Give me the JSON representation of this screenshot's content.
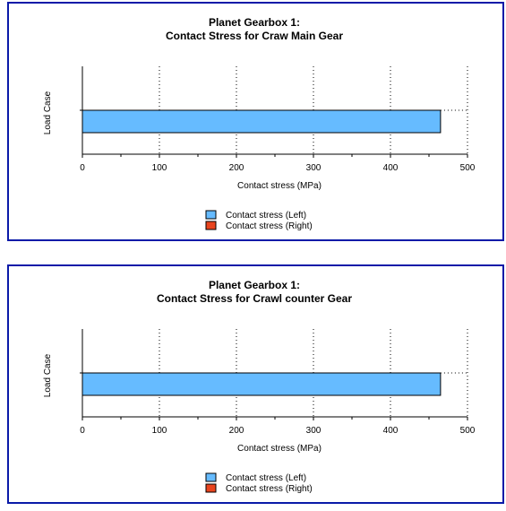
{
  "chart_data": [
    {
      "type": "bar",
      "orientation": "horizontal",
      "title": "Planet Gearbox 1:",
      "subtitle": "Contact Stress for Craw Main Gear",
      "xlabel": "Contact stress (MPa)",
      "ylabel": "Load Case",
      "xlim": [
        0,
        500
      ],
      "xticks": [
        0,
        100,
        200,
        300,
        400,
        500
      ],
      "grid": "vertical dotted",
      "legend_position": "bottom",
      "series": [
        {
          "name": "Contact stress (Left)",
          "color": "#66bbff",
          "values": [
            465
          ]
        },
        {
          "name": "Contact stress (Right)",
          "color": "#e8441e",
          "values": [
            0
          ]
        }
      ]
    },
    {
      "type": "bar",
      "orientation": "horizontal",
      "title": "Planet Gearbox 1:",
      "subtitle": "Contact Stress for Crawl  counter Gear",
      "xlabel": "Contact stress (MPa)",
      "ylabel": "Load Case",
      "xlim": [
        0,
        500
      ],
      "xticks": [
        0,
        100,
        200,
        300,
        400,
        500
      ],
      "grid": "vertical dotted",
      "legend_position": "bottom",
      "series": [
        {
          "name": "Contact stress (Left)",
          "color": "#66bbff",
          "values": [
            465
          ]
        },
        {
          "name": "Contact stress (Right)",
          "color": "#e8441e",
          "values": [
            0
          ]
        }
      ]
    }
  ],
  "colors": {
    "frame": "#0a1aa8"
  }
}
